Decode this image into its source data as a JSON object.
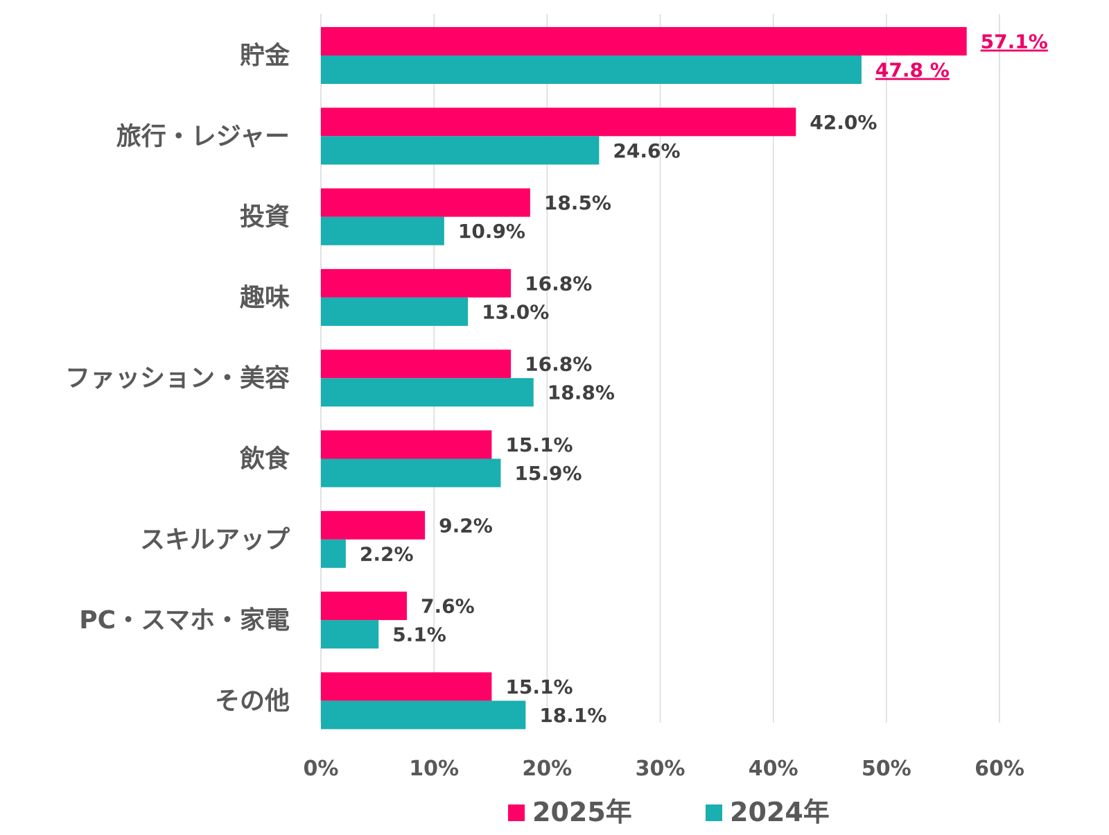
{
  "chart_data": {
    "type": "bar",
    "orientation": "horizontal",
    "categories": [
      "貯金",
      "旅行・レジャー",
      "投資",
      "趣味",
      "ファッション・美容",
      "飲食",
      "スキルアップ",
      "PC・スマホ・家電",
      "その他"
    ],
    "series": [
      {
        "name": "2025年",
        "color": "#ff0066",
        "values": [
          57.1,
          42.0,
          18.5,
          16.8,
          16.8,
          15.1,
          9.2,
          7.6,
          15.1
        ],
        "labels": [
          "57.1%",
          "42.0%",
          "18.5%",
          "16.8%",
          "16.8%",
          "15.1%",
          "9.2%",
          "7.6%",
          "15.1%"
        ]
      },
      {
        "name": "2024年",
        "color": "#1aafb0",
        "values": [
          47.8,
          24.6,
          10.9,
          13.0,
          18.8,
          15.9,
          2.2,
          5.1,
          18.1
        ],
        "labels": [
          "47.8 %",
          "24.6%",
          "10.9%",
          "13.0%",
          "18.8%",
          "15.9%",
          "2.2%",
          "5.1%",
          "18.1%"
        ]
      }
    ],
    "highlight_category_index": 0,
    "highlight_label_color": "#ee0066",
    "xlim": [
      0,
      60
    ],
    "xticks": [
      0,
      10,
      20,
      30,
      40,
      50,
      60
    ],
    "xtick_labels": [
      "0%",
      "10%",
      "20%",
      "30%",
      "40%",
      "50%",
      "60%"
    ],
    "grid": true,
    "legend_position": "bottom",
    "title": "",
    "xlabel": "",
    "ylabel": ""
  }
}
